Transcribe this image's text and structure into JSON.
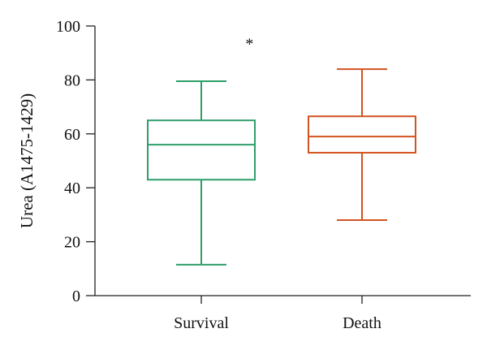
{
  "chart_data": {
    "type": "box",
    "ylabel": "Urea (A1475-1429)",
    "xlabel": "",
    "ylim": [
      0,
      100
    ],
    "yticks": [
      0,
      20,
      40,
      60,
      80,
      100
    ],
    "grid": false,
    "categories": [
      "Survival",
      "Death"
    ],
    "boxes": [
      {
        "category": "Survival",
        "min": 11.5,
        "q1": 43,
        "median": 56,
        "q3": 65,
        "max": 79.5,
        "color": "#2e9e6a"
      },
      {
        "category": "Death",
        "min": 28,
        "q1": 53,
        "median": 59,
        "q3": 66.5,
        "max": 84,
        "color": "#d2531f"
      }
    ],
    "annotations": [
      {
        "text": "*",
        "category": "Death",
        "offset": -0.7,
        "y": 95
      }
    ]
  }
}
